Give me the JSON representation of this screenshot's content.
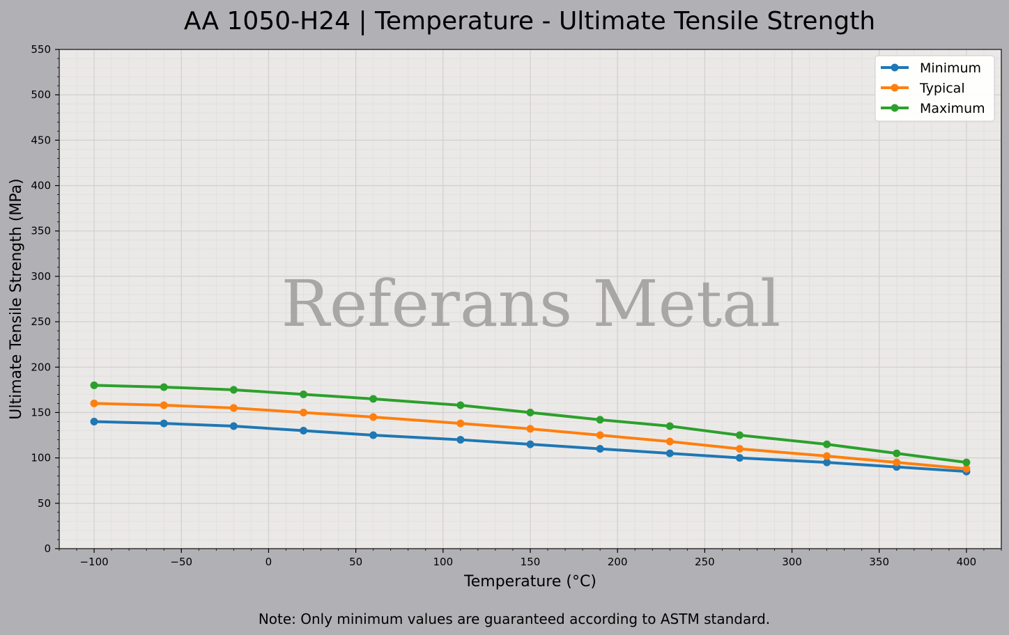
{
  "chart_data": {
    "type": "line",
    "title": "AA 1050-H24 | Temperature - Ultimate Tensile Strength",
    "xlabel": "Temperature (°C)",
    "ylabel": "Ultimate Tensile Strength (MPa)",
    "xlim": [
      -120,
      420
    ],
    "ylim": [
      0,
      550
    ],
    "xticks": [
      -100,
      -50,
      0,
      50,
      100,
      150,
      200,
      250,
      300,
      350,
      400
    ],
    "xtick_labels": [
      "−100",
      "−50",
      "0",
      "50",
      "100",
      "150",
      "200",
      "250",
      "300",
      "350",
      "400"
    ],
    "yticks": [
      0,
      50,
      100,
      150,
      200,
      250,
      300,
      350,
      400,
      450,
      500,
      550
    ],
    "ytick_labels": [
      "0",
      "50",
      "100",
      "150",
      "200",
      "250",
      "300",
      "350",
      "400",
      "450",
      "500",
      "550"
    ],
    "grid": true,
    "legend_position": "top-right",
    "x": [
      -100,
      -60,
      -20,
      20,
      60,
      110,
      150,
      190,
      230,
      270,
      320,
      360,
      400
    ],
    "series": [
      {
        "name": "Minimum",
        "color": "#1f77b4",
        "values": [
          140,
          138,
          135,
          130,
          125,
          120,
          115,
          110,
          105,
          100,
          95,
          90,
          85
        ]
      },
      {
        "name": "Typical",
        "color": "#ff7f0e",
        "values": [
          160,
          158,
          155,
          150,
          145,
          138,
          132,
          125,
          118,
          110,
          102,
          95,
          88
        ]
      },
      {
        "name": "Maximum",
        "color": "#2ca02c",
        "values": [
          180,
          178,
          175,
          170,
          165,
          158,
          150,
          142,
          135,
          125,
          115,
          105,
          95
        ]
      }
    ],
    "watermark": "Referans Metal",
    "note": "Note: Only minimum values are guaranteed according to ASTM standard."
  },
  "colors": {
    "page_background": "#b1b0b5",
    "plot_background": "#ebe9e7",
    "grid_major": "#d3d1cf",
    "grid_minor": "#e2e0de"
  }
}
